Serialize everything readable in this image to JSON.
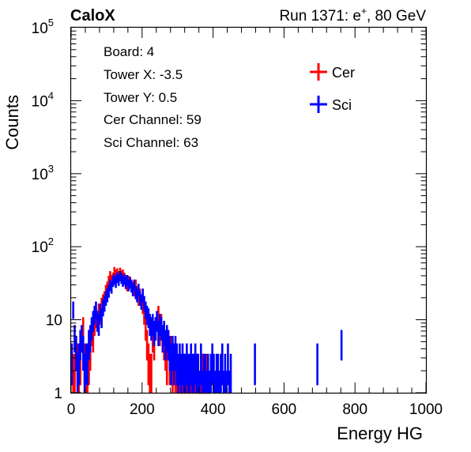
{
  "header": {
    "brand": "CaloX",
    "run_prefix": "Run 1371: e",
    "run_sup": "+",
    "run_suffix": ", 80 GeV"
  },
  "info": {
    "lines": [
      "Board: 4",
      "Tower X: -3.5",
      "Tower Y: 0.5",
      "Cer Channel: 59",
      "Sci Channel: 63"
    ]
  },
  "legend": {
    "placement": "top-right",
    "entries": [
      {
        "name": "Cer",
        "color": "#ff0000"
      },
      {
        "name": "Sci",
        "color": "#0000ff"
      }
    ]
  },
  "chart_data": {
    "type": "histogram",
    "title": "",
    "xlabel": "Energy HG",
    "ylabel": "Counts",
    "xlim": [
      0,
      1000
    ],
    "ylim": [
      1,
      100000
    ],
    "yscale": "log",
    "grid": false,
    "bin_width": 4,
    "x_ticks": [
      {
        "value": 0,
        "label": "0"
      },
      {
        "value": 200,
        "label": "200"
      },
      {
        "value": 400,
        "label": "400"
      },
      {
        "value": 600,
        "label": "600"
      },
      {
        "value": 800,
        "label": "800"
      },
      {
        "value": 1000,
        "label": "1000"
      }
    ],
    "y_ticks": [
      {
        "value": 1,
        "base": "1",
        "exp": ""
      },
      {
        "value": 10,
        "base": "10",
        "exp": ""
      },
      {
        "value": 100,
        "base": "10",
        "exp": "2"
      },
      {
        "value": 1000,
        "base": "10",
        "exp": "3"
      },
      {
        "value": 10000,
        "base": "10",
        "exp": "4"
      },
      {
        "value": 100000,
        "base": "10",
        "exp": "5"
      }
    ],
    "series": [
      {
        "name": "Cer",
        "color": "#ff0000",
        "bins": [
          [
            2,
            3
          ],
          [
            6,
            2
          ],
          [
            10,
            2
          ],
          [
            14,
            4
          ],
          [
            18,
            3
          ],
          [
            22,
            2
          ],
          [
            26,
            3
          ],
          [
            30,
            6
          ],
          [
            34,
            8
          ],
          [
            38,
            3
          ],
          [
            42,
            2
          ],
          [
            46,
            2
          ],
          [
            50,
            3
          ],
          [
            54,
            4
          ],
          [
            58,
            7
          ],
          [
            62,
            6
          ],
          [
            66,
            9
          ],
          [
            70,
            11
          ],
          [
            74,
            10
          ],
          [
            78,
            13
          ],
          [
            82,
            12
          ],
          [
            86,
            16
          ],
          [
            90,
            18
          ],
          [
            94,
            20
          ],
          [
            98,
            25
          ],
          [
            102,
            28
          ],
          [
            106,
            34
          ],
          [
            110,
            40
          ],
          [
            114,
            35
          ],
          [
            118,
            38
          ],
          [
            122,
            46
          ],
          [
            126,
            42
          ],
          [
            130,
            44
          ],
          [
            134,
            40
          ],
          [
            138,
            45
          ],
          [
            142,
            41
          ],
          [
            146,
            42
          ],
          [
            150,
            38
          ],
          [
            154,
            35
          ],
          [
            158,
            30
          ],
          [
            162,
            34
          ],
          [
            166,
            32
          ],
          [
            170,
            30
          ],
          [
            174,
            28
          ],
          [
            178,
            26
          ],
          [
            182,
            30
          ],
          [
            186,
            24
          ],
          [
            190,
            20
          ],
          [
            194,
            22
          ],
          [
            198,
            18
          ],
          [
            202,
            16
          ],
          [
            206,
            12
          ],
          [
            210,
            8
          ],
          [
            214,
            5
          ],
          [
            218,
            3
          ],
          [
            222,
            2
          ],
          [
            226,
            2
          ],
          [
            230,
            6
          ],
          [
            234,
            5
          ],
          [
            238,
            8
          ],
          [
            242,
            10
          ],
          [
            246,
            12
          ],
          [
            250,
            7
          ],
          [
            254,
            9
          ],
          [
            258,
            6
          ],
          [
            262,
            5
          ],
          [
            266,
            4
          ],
          [
            270,
            3
          ],
          [
            274,
            5
          ],
          [
            278,
            3
          ],
          [
            282,
            4
          ],
          [
            286,
            2
          ],
          [
            290,
            3
          ],
          [
            294,
            2
          ],
          [
            298,
            2
          ],
          [
            302,
            1
          ],
          [
            306,
            2
          ],
          [
            310,
            1
          ],
          [
            314,
            1
          ],
          [
            318,
            2
          ],
          [
            322,
            1
          ],
          [
            326,
            2
          ],
          [
            330,
            1
          ],
          [
            334,
            1
          ],
          [
            338,
            2
          ],
          [
            342,
            1
          ],
          [
            346,
            2
          ],
          [
            350,
            1
          ],
          [
            354,
            1
          ],
          [
            358,
            2
          ],
          [
            362,
            1
          ],
          [
            366,
            1
          ],
          [
            370,
            2
          ],
          [
            374,
            1
          ],
          [
            378,
            1
          ],
          [
            382,
            2
          ],
          [
            386,
            1
          ],
          [
            390,
            1
          ]
        ]
      },
      {
        "name": "Sci",
        "color": "#0000ff",
        "bins": [
          [
            2,
            3
          ],
          [
            6,
            14
          ],
          [
            10,
            6
          ],
          [
            14,
            4
          ],
          [
            18,
            2
          ],
          [
            22,
            3
          ],
          [
            26,
            5
          ],
          [
            30,
            6
          ],
          [
            34,
            4
          ],
          [
            38,
            2
          ],
          [
            42,
            3
          ],
          [
            46,
            3
          ],
          [
            50,
            5
          ],
          [
            54,
            6
          ],
          [
            58,
            8
          ],
          [
            62,
            10
          ],
          [
            66,
            12
          ],
          [
            70,
            14
          ],
          [
            74,
            10
          ],
          [
            78,
            9
          ],
          [
            82,
            13
          ],
          [
            86,
            11
          ],
          [
            90,
            15
          ],
          [
            94,
            17
          ],
          [
            98,
            20
          ],
          [
            102,
            22
          ],
          [
            106,
            25
          ],
          [
            110,
            30
          ],
          [
            114,
            28
          ],
          [
            118,
            34
          ],
          [
            122,
            36
          ],
          [
            126,
            33
          ],
          [
            130,
            38
          ],
          [
            134,
            35
          ],
          [
            138,
            40
          ],
          [
            142,
            37
          ],
          [
            146,
            34
          ],
          [
            150,
            36
          ],
          [
            154,
            32
          ],
          [
            158,
            35
          ],
          [
            162,
            30
          ],
          [
            166,
            33
          ],
          [
            170,
            29
          ],
          [
            174,
            26
          ],
          [
            178,
            30
          ],
          [
            182,
            24
          ],
          [
            186,
            22
          ],
          [
            190,
            26
          ],
          [
            194,
            20
          ],
          [
            198,
            18
          ],
          [
            202,
            22
          ],
          [
            206,
            17
          ],
          [
            210,
            14
          ],
          [
            214,
            12
          ],
          [
            218,
            11
          ],
          [
            222,
            9
          ],
          [
            226,
            8
          ],
          [
            230,
            9
          ],
          [
            234,
            7
          ],
          [
            238,
            8
          ],
          [
            242,
            10
          ],
          [
            246,
            7
          ],
          [
            250,
            9
          ],
          [
            254,
            8
          ],
          [
            258,
            6
          ],
          [
            262,
            7
          ],
          [
            266,
            5
          ],
          [
            270,
            6
          ],
          [
            274,
            5
          ],
          [
            278,
            4
          ],
          [
            282,
            3
          ],
          [
            286,
            4
          ],
          [
            290,
            3
          ],
          [
            294,
            4
          ],
          [
            298,
            3
          ],
          [
            302,
            2
          ],
          [
            306,
            3
          ],
          [
            310,
            2
          ],
          [
            314,
            3
          ],
          [
            318,
            2
          ],
          [
            322,
            2
          ],
          [
            326,
            3
          ],
          [
            330,
            2
          ],
          [
            334,
            2
          ],
          [
            338,
            3
          ],
          [
            342,
            2
          ],
          [
            346,
            2
          ],
          [
            350,
            3
          ],
          [
            354,
            2
          ],
          [
            358,
            2
          ],
          [
            362,
            1
          ],
          [
            366,
            3
          ],
          [
            370,
            1
          ],
          [
            374,
            2
          ],
          [
            378,
            2
          ],
          [
            382,
            1
          ],
          [
            386,
            2
          ],
          [
            390,
            1
          ],
          [
            394,
            2
          ],
          [
            398,
            3
          ],
          [
            402,
            2
          ],
          [
            406,
            1
          ],
          [
            410,
            2
          ],
          [
            414,
            2
          ],
          [
            418,
            1
          ],
          [
            422,
            2
          ],
          [
            426,
            3
          ],
          [
            430,
            1
          ],
          [
            434,
            2
          ],
          [
            438,
            1
          ],
          [
            442,
            3
          ],
          [
            446,
            1
          ],
          [
            450,
            2
          ],
          [
            518,
            3
          ],
          [
            694,
            3
          ],
          [
            762,
            5
          ]
        ]
      }
    ]
  }
}
